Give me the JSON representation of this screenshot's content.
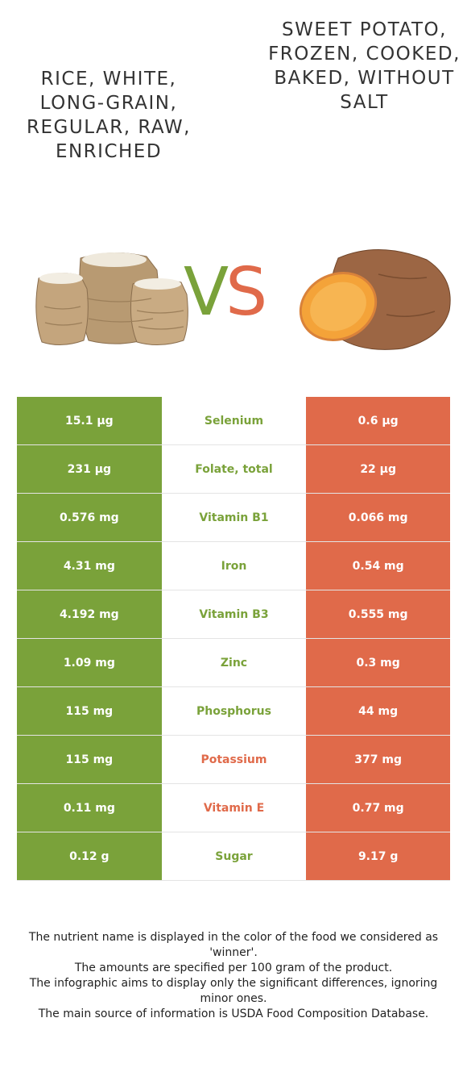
{
  "left_food": {
    "title": "RICE, WHITE, LONG-GRAIN, REGULAR, RAW, ENRICHED",
    "color": "#7aa23a"
  },
  "right_food": {
    "title": "SWEET POTATO, FROZEN, COOKED, BAKED, WITHOUT SALT",
    "color": "#e06a4a"
  },
  "vs": {
    "v": "V",
    "s": "S"
  },
  "rows": [
    {
      "nutrient": "Selenium",
      "left": "15.1 µg",
      "right": "0.6 µg",
      "winner": "left"
    },
    {
      "nutrient": "Folate, total",
      "left": "231 µg",
      "right": "22 µg",
      "winner": "left"
    },
    {
      "nutrient": "Vitamin B1",
      "left": "0.576 mg",
      "right": "0.066 mg",
      "winner": "left"
    },
    {
      "nutrient": "Iron",
      "left": "4.31 mg",
      "right": "0.54 mg",
      "winner": "left"
    },
    {
      "nutrient": "Vitamin B3",
      "left": "4.192 mg",
      "right": "0.555 mg",
      "winner": "left"
    },
    {
      "nutrient": "Zinc",
      "left": "1.09 mg",
      "right": "0.3 mg",
      "winner": "left"
    },
    {
      "nutrient": "Phosphorus",
      "left": "115 mg",
      "right": "44 mg",
      "winner": "left"
    },
    {
      "nutrient": "Potassium",
      "left": "115 mg",
      "right": "377 mg",
      "winner": "right"
    },
    {
      "nutrient": "Vitamin E",
      "left": "0.11 mg",
      "right": "0.77 mg",
      "winner": "right"
    },
    {
      "nutrient": "Sugar",
      "left": "0.12 g",
      "right": "9.17 g",
      "winner": "left"
    }
  ],
  "footer": [
    "The nutrient name is displayed in the color of the food we considered as 'winner'.",
    "The amounts are specified per 100 gram of the product.",
    "The infographic aims to display only the significant differences, ignoring minor ones.",
    "The main source of information is USDA Food Composition Database."
  ]
}
